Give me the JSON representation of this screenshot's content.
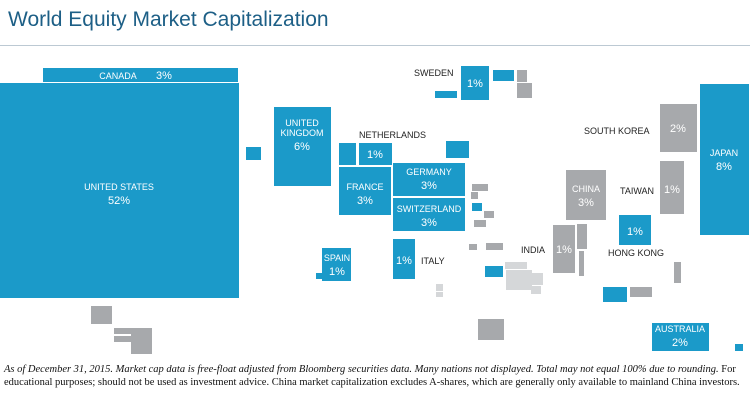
{
  "title": "World Equity Market Capitalization",
  "colors": {
    "highlight": "#1b9ac9",
    "other": "#a7a9ac",
    "other_light": "#d5d7d9",
    "title": "#1d5f86"
  },
  "chart_data": {
    "type": "treemap-map",
    "title": "World Equity Market Capitalization",
    "unit": "%",
    "countries": [
      {
        "name": "CANADA",
        "value": "3%"
      },
      {
        "name": "UNITED STATES",
        "value": "52%"
      },
      {
        "name": "UNITED KINGDOM",
        "value": "6%"
      },
      {
        "name": "SWEDEN",
        "value": "1%"
      },
      {
        "name": "NETHERLANDS",
        "value": "1%"
      },
      {
        "name": "FRANCE",
        "value": "3%"
      },
      {
        "name": "GERMANY",
        "value": "3%"
      },
      {
        "name": "SWITZERLAND",
        "value": "3%"
      },
      {
        "name": "SPAIN",
        "value": "1%"
      },
      {
        "name": "ITALY",
        "value": "1%"
      },
      {
        "name": "SOUTH KOREA",
        "value": "2%"
      },
      {
        "name": "JAPAN",
        "value": "8%"
      },
      {
        "name": "CHINA",
        "value": "3%"
      },
      {
        "name": "TAIWAN",
        "value": "1%"
      },
      {
        "name": "INDIA",
        "value": "1%"
      },
      {
        "name": "HONG KONG",
        "value": "1%"
      },
      {
        "name": "AUSTRALIA",
        "value": "2%"
      }
    ]
  },
  "footnote": {
    "italic": "As of December 31, 2015. Market cap data is free-float adjusted from Bloomberg securities data. Many nations not displayed. Total may not equal 100% due to rounding.",
    "plain": " For educational purposes; should not be used as investment advice. China market capitalization excludes A-shares, which are generally only available to mainland China investors."
  }
}
